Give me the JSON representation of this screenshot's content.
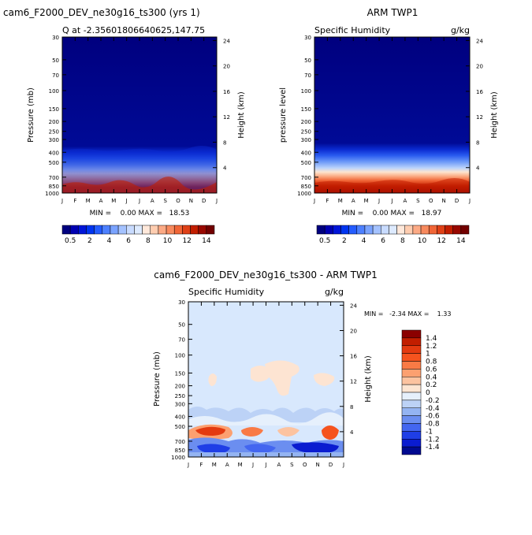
{
  "months": [
    "J",
    "F",
    "M",
    "A",
    "M",
    "J",
    "J",
    "A",
    "S",
    "O",
    "N",
    "D",
    "J"
  ],
  "pressure_ticks": [
    "30",
    "50",
    "70",
    "100",
    "150",
    "200",
    "250",
    "300",
    "400",
    "500",
    "700",
    "850",
    "1000"
  ],
  "height_ticks": [
    "24",
    "20",
    "16",
    "12",
    "8",
    "4"
  ],
  "palette": [
    "#00007f",
    "#0000b2",
    "#0015d8",
    "#0034f0",
    "#245cff",
    "#4d80ff",
    "#7aa3ff",
    "#a4c2ff",
    "#c8dbff",
    "#ddeaff",
    "#ffe8da",
    "#ffcdb0",
    "#fcaa85",
    "#f88a5e",
    "#f16637",
    "#df4117",
    "#c21e00",
    "#980800",
    "#720000"
  ],
  "panel_left": {
    "title": "cam6_F2000_DEV_ne30g16_ts300 (yrs 1)",
    "subtitle": "Q at -2.35601806640625,147.75",
    "ylabel_left": "Pressure (mb)",
    "ylabel_right": "Height (km)",
    "stats": "MIN =    0.00 MAX =   18.53",
    "colorbar_labels": [
      "0.5",
      "2",
      "4",
      "6",
      "8",
      "10",
      "12",
      "14"
    ]
  },
  "panel_right": {
    "title": "ARM TWP1",
    "subtitle_left": "Specific Humidity",
    "subtitle_right": "g/kg",
    "ylabel_left": "pressure level",
    "ylabel_right": "Height (km)",
    "stats": "MIN =    0.00 MAX =   18.97",
    "colorbar_labels": [
      "0.5",
      "2",
      "4",
      "6",
      "8",
      "10",
      "12",
      "14"
    ]
  },
  "panel_diff": {
    "title": "cam6_F2000_DEV_ne30g16_ts300 - ARM TWP1",
    "subtitle_left": "Specific Humidity",
    "subtitle_right": "g/kg",
    "ylabel_left": "Pressure (mb)",
    "ylabel_right": "Height (km)",
    "stats": "MIN =   -2.34 MAX =    1.33",
    "colorbar_labels": [
      "1.4",
      "1.2",
      "1",
      "0.8",
      "0.6",
      "0.4",
      "0.2",
      "0",
      "-0.2",
      "-0.4",
      "-0.6",
      "-0.8",
      "-1",
      "-1.2",
      "-1.4"
    ],
    "colorbar_colors": [
      "#8b0000",
      "#c21e00",
      "#e33a10",
      "#f5531e",
      "#f97a45",
      "#fca070",
      "#fcc3a0",
      "#fde5d2",
      "#e6f0fc",
      "#bcd2f6",
      "#94b4f2",
      "#6b8ef0",
      "#4366f0",
      "#1f3ee6",
      "#0a1cd0",
      "#000a90"
    ]
  },
  "chart_data": [
    {
      "type": "heatmap",
      "title": "cam6_F2000_DEV_ne30g16_ts300 (yrs 1)",
      "subtitle": "Q at -2.35601806640625,147.75",
      "x_categories": [
        "J",
        "F",
        "M",
        "A",
        "M",
        "J",
        "J",
        "A",
        "S",
        "O",
        "N",
        "D",
        "J"
      ],
      "ylabel": "Pressure (mb)",
      "y2label": "Height (km)",
      "ylim": [
        1000,
        30
      ],
      "units": "g/kg",
      "min": 0.0,
      "max": 18.53,
      "levels": [
        0.5,
        1,
        2,
        3,
        4,
        5,
        6,
        7,
        8,
        9,
        10,
        11,
        12,
        13,
        14,
        15,
        16,
        17
      ]
    },
    {
      "type": "heatmap",
      "title": "ARM TWP1",
      "subtitle": "Specific Humidity",
      "x_categories": [
        "J",
        "F",
        "M",
        "A",
        "M",
        "J",
        "J",
        "A",
        "S",
        "O",
        "N",
        "D",
        "J"
      ],
      "ylabel": "pressure level",
      "y2label": "Height (km)",
      "ylim": [
        1000,
        30
      ],
      "units": "g/kg",
      "min": 0.0,
      "max": 18.97,
      "levels": [
        0.5,
        1,
        2,
        3,
        4,
        5,
        6,
        7,
        8,
        9,
        10,
        11,
        12,
        13,
        14,
        15,
        16,
        17
      ]
    },
    {
      "type": "heatmap",
      "title": "cam6_F2000_DEV_ne30g16_ts300 - ARM TWP1",
      "subtitle": "Specific Humidity",
      "x_categories": [
        "J",
        "F",
        "M",
        "A",
        "M",
        "J",
        "J",
        "A",
        "S",
        "O",
        "N",
        "D",
        "J"
      ],
      "ylabel": "Pressure (mb)",
      "y2label": "Height (km)",
      "ylim": [
        1000,
        30
      ],
      "units": "g/kg",
      "min": -2.34,
      "max": 1.33,
      "levels": [
        -1.4,
        -1.2,
        -1,
        -0.8,
        -0.6,
        -0.4,
        -0.2,
        0,
        0.2,
        0.4,
        0.6,
        0.8,
        1,
        1.2,
        1.4
      ]
    }
  ]
}
